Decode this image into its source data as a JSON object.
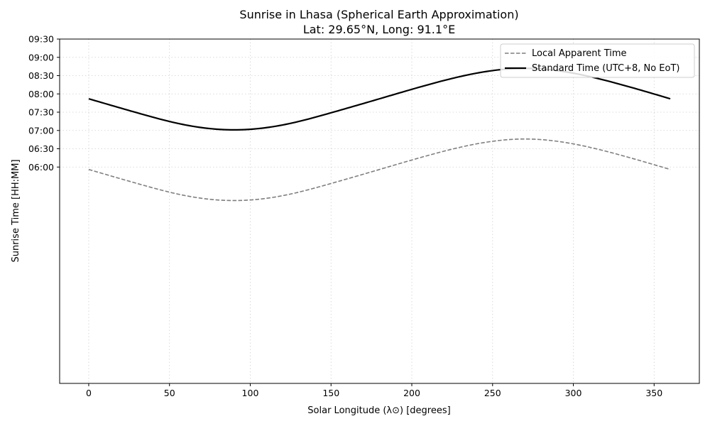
{
  "chart_data": {
    "type": "line",
    "title": "Sunrise in Lhasa (Spherical Earth Approximation)",
    "subtitle": "Lat: 29.65°N, Long: 91.1°E",
    "xlabel": "Solar Longitude (λ⊙) [degrees]",
    "ylabel": "Sunrise Time [HH:MM]",
    "xlim": [
      -18,
      378
    ],
    "ylim_minutes": [
      5,
      570
    ],
    "x_ticks": [
      0,
      50,
      100,
      150,
      200,
      250,
      300,
      350
    ],
    "x_tick_labels": [
      "0",
      "50",
      "100",
      "150",
      "200",
      "250",
      "300",
      "350"
    ],
    "y_ticks_minutes": [
      360,
      390,
      420,
      450,
      480,
      510,
      540,
      570
    ],
    "y_tick_labels": [
      "06:00",
      "06:30",
      "07:00",
      "07:30",
      "08:00",
      "08:30",
      "09:00",
      "09:30"
    ],
    "grid": true,
    "legend_position": "top-right",
    "x": [
      0,
      30,
      60,
      90,
      120,
      150,
      180,
      210,
      240,
      270,
      300,
      330,
      360
    ],
    "series": [
      {
        "name": "Local Apparent Time",
        "style": "dashed",
        "color": "#7f7f7f",
        "values": [
          356,
          333,
          313,
          305,
          313,
          333,
          356,
          379,
          398,
          406,
          398,
          379,
          356
        ]
      },
      {
        "name": "Standard Time (UTC+8, No EoT)",
        "style": "solid",
        "color": "#000000",
        "values": [
          472,
          449,
          429,
          421,
          429,
          449,
          472,
          495,
          514,
          522,
          514,
          495,
          472
        ]
      }
    ]
  }
}
